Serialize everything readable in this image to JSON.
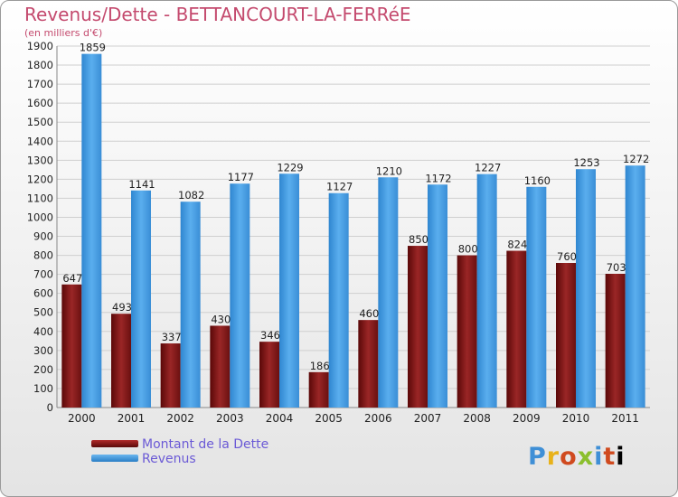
{
  "title": "Revenus/Dette - BETTANCOURT-LA-FERRéE",
  "subtitle": "(en milliers d'€)",
  "logo_text": "Proxiti",
  "colors": {
    "debt": "#7a1a1a",
    "revenue": "#3f95dc",
    "title": "#c44a6e",
    "legend_text": "#6b5ad6"
  },
  "chart_data": {
    "type": "bar",
    "title": "Revenus/Dette - BETTANCOURT-LA-FERRéE",
    "subtitle": "(en milliers d'€)",
    "categories": [
      "2000",
      "2001",
      "2002",
      "2003",
      "2004",
      "2005",
      "2006",
      "2007",
      "2008",
      "2009",
      "2010",
      "2011"
    ],
    "series": [
      {
        "name": "Montant de la Dette",
        "values": [
          647,
          493,
          337,
          430,
          346,
          186,
          460,
          850,
          800,
          824,
          760,
          703
        ]
      },
      {
        "name": "Revenus",
        "values": [
          1859,
          1141,
          1082,
          1177,
          1229,
          1127,
          1210,
          1172,
          1227,
          1160,
          1253,
          1272
        ]
      }
    ],
    "ylim": [
      0,
      1900
    ],
    "ytick_step": 100,
    "grid": true,
    "legend_position": "bottom-left"
  }
}
